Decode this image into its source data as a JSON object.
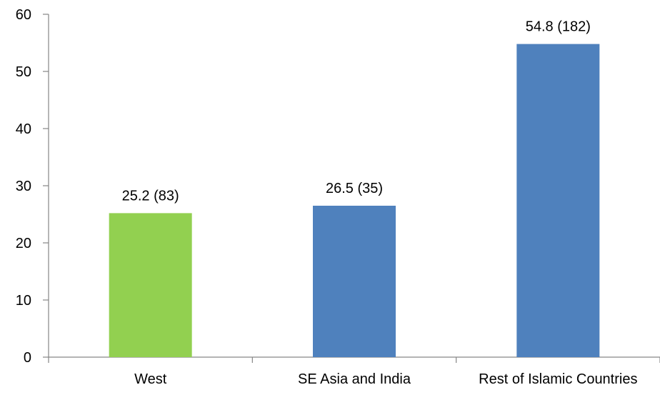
{
  "chart_data": {
    "type": "bar",
    "title": "",
    "xlabel": "",
    "ylabel": "",
    "categories": [
      "West",
      "SE Asia and India",
      "Rest of Islamic Countries"
    ],
    "values": [
      25.2,
      26.5,
      54.8
    ],
    "data_labels": [
      "25.2 (83)",
      "26.5 (35)",
      "54.8 (182)"
    ],
    "colors": [
      "#92d050",
      "#4f81bd",
      "#4f81bd"
    ],
    "ylim": [
      0,
      60
    ],
    "yticks": [
      "0",
      "10",
      "20",
      "30",
      "40",
      "50",
      "60"
    ],
    "grid": false,
    "legend": "none"
  }
}
